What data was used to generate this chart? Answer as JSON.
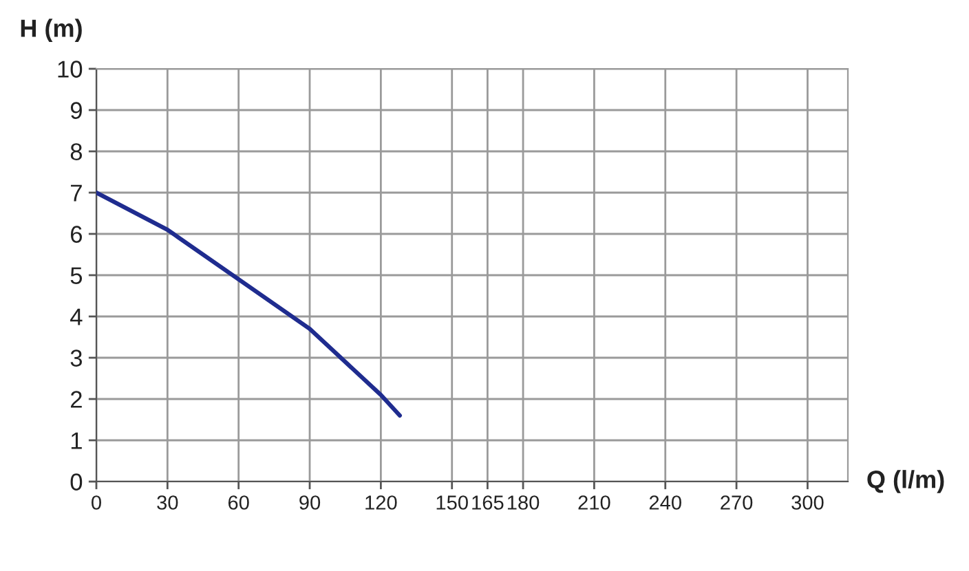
{
  "chart_data": {
    "type": "line",
    "xlabel": "Q (l/m)",
    "ylabel": "H (m)",
    "x": [
      0,
      30,
      60,
      90,
      120,
      128
    ],
    "series": [
      {
        "color": "#1f2c8f",
        "values": [
          7.0,
          6.1,
          4.9,
          3.7,
          2.1,
          1.6
        ]
      }
    ],
    "xlim": [
      0,
      317
    ],
    "xticks": [
      0,
      30,
      60,
      90,
      120,
      150,
      165,
      180,
      210,
      240,
      270,
      300
    ],
    "ylim": [
      0,
      10
    ],
    "yticks": [
      0,
      1,
      2,
      3,
      4,
      5,
      6,
      7,
      8,
      9,
      10
    ],
    "grid": true,
    "line_style": "solid",
    "marker": "none"
  }
}
